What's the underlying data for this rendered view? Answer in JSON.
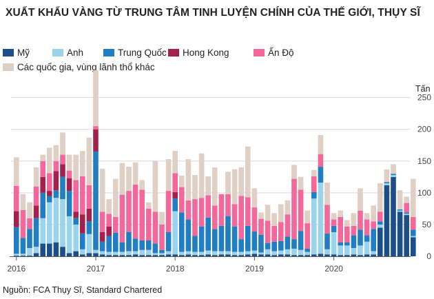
{
  "chart_data": {
    "type": "bar",
    "stacked": true,
    "title": "XUẤT KHẨU VÀNG TỪ TRUNG TÂM TINH LUYỆN CHÍNH CỦA THẾ GIỚI, THỤY SĨ",
    "ylabel": "Tấn",
    "ylim": [
      0,
      280
    ],
    "yticks": [
      "0",
      "50",
      "100",
      "150",
      "200",
      "250"
    ],
    "ytick_values": [
      0,
      50,
      100,
      150,
      200,
      250
    ],
    "xticks": [
      "2016",
      "2017",
      "2018",
      "2019",
      "2020"
    ],
    "xtick_index": [
      0,
      12,
      24,
      36,
      48
    ],
    "grid": true,
    "legend_position": "top-left",
    "source": "Nguồn: FCA Thụy Sĩ, Standard Chartered",
    "series": [
      {
        "name": "Mỹ",
        "color": "#1c4f8a",
        "values": [
          1,
          1,
          1,
          5,
          20,
          20,
          22,
          15,
          5,
          8,
          3,
          5,
          5,
          3,
          2,
          2,
          2,
          2,
          3,
          2,
          2,
          2,
          2,
          3,
          3,
          2,
          3,
          2,
          2,
          3,
          2,
          3,
          3,
          2,
          2,
          3,
          4,
          3,
          3,
          2,
          3,
          3,
          2,
          2,
          2,
          3,
          4,
          3,
          3,
          2,
          2,
          3,
          2,
          3,
          3,
          45,
          112,
          125,
          70,
          65,
          30
        ]
      },
      {
        "name": "Anh",
        "color": "#99d3ec",
        "values": [
          3,
          3,
          12,
          10,
          40,
          65,
          70,
          75,
          58,
          42,
          8,
          30,
          5,
          5,
          5,
          5,
          5,
          6,
          5,
          8,
          8,
          3,
          3,
          5,
          68,
          5,
          5,
          5,
          5,
          6,
          6,
          5,
          5,
          5,
          5,
          5,
          5,
          3,
          8,
          6,
          6,
          8,
          10,
          8,
          5,
          88,
          112,
          8,
          35,
          15,
          15,
          10,
          15,
          20,
          5,
          5,
          3,
          3,
          2,
          2,
          2
        ]
      },
      {
        "name": "Trung Quốc",
        "color": "#1f7ec4",
        "values": [
          42,
          25,
          30,
          45,
          40,
          10,
          12,
          35,
          40,
          10,
          25,
          20,
          155,
          15,
          25,
          30,
          15,
          30,
          20,
          15,
          15,
          15,
          5,
          30,
          20,
          62,
          50,
          25,
          40,
          52,
          35,
          40,
          55,
          40,
          20,
          40,
          30,
          28,
          10,
          15,
          15,
          20,
          15,
          30,
          5,
          10,
          25,
          25,
          10,
          5,
          5,
          20,
          25,
          10,
          35,
          5,
          2,
          2,
          2,
          2,
          10
        ]
      },
      {
        "name": "Hong Kong",
        "color": "#a3224d",
        "values": [
          25,
          0,
          0,
          20,
          25,
          8,
          30,
          20,
          20,
          10,
          30,
          20,
          35,
          15,
          15,
          0,
          0,
          0,
          0,
          0,
          0,
          0,
          0,
          0,
          10,
          0,
          0,
          0,
          0,
          0,
          0,
          0,
          0,
          0,
          0,
          0,
          0,
          0,
          0,
          0,
          0,
          0,
          0,
          0,
          0,
          0,
          0,
          0,
          0,
          0,
          0,
          0,
          0,
          0,
          0,
          0,
          0,
          0,
          0,
          0,
          0
        ]
      },
      {
        "name": "Ấn Độ",
        "color": "#f2689a",
        "values": [
          40,
          44,
          17,
          30,
          25,
          28,
          16,
          15,
          12,
          50,
          60,
          37,
          5,
          32,
          20,
          25,
          75,
          65,
          85,
          80,
          50,
          50,
          40,
          65,
          30,
          40,
          30,
          58,
          45,
          35,
          37,
          50,
          35,
          35,
          68,
          45,
          38,
          25,
          35,
          25,
          30,
          35,
          95,
          65,
          40,
          25,
          20,
          45,
          10,
          40,
          25,
          15,
          30,
          25,
          12,
          15,
          0,
          0,
          0,
          15,
          20
        ]
      },
      {
        "name": "Các quốc gia, vùng lãnh thổ khác",
        "color": "#e0cfc5",
        "values": [
          45,
          25,
          25,
          30,
          10,
          40,
          25,
          35,
          25,
          40,
          40,
          75,
          88,
          68,
          23,
          60,
          50,
          38,
          35,
          15,
          10,
          80,
          20,
          50,
          35,
          18,
          65,
          38,
          70,
          30,
          60,
          0,
          35,
          55,
          45,
          80,
          30,
          10,
          25,
          20,
          28,
          22,
          22,
          20,
          20,
          10,
          30,
          35,
          10,
          10,
          10,
          20,
          35,
          10,
          25,
          45,
          20,
          15,
          30,
          10,
          60
        ]
      }
    ]
  }
}
